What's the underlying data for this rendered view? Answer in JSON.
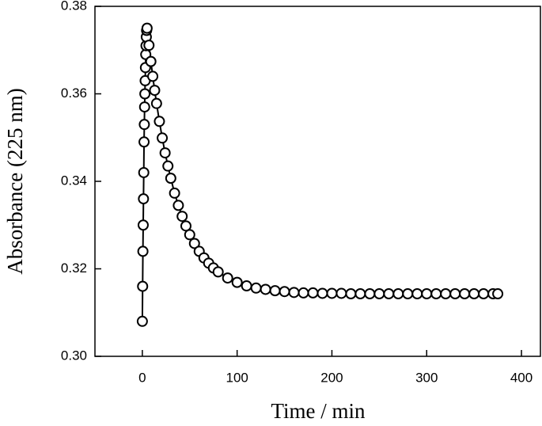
{
  "chart_data": {
    "type": "scatter",
    "xlabel": "Time / min",
    "ylabel": "Absorbance (225 nm)",
    "x": [
      0,
      0.3,
      0.6,
      0.9,
      1.2,
      1.5,
      1.8,
      2.1,
      2.4,
      2.7,
      3,
      3.3,
      3.6,
      3.9,
      4.2,
      4.5,
      5,
      7,
      9,
      11,
      13,
      15,
      18,
      21,
      24,
      27,
      30,
      34,
      38,
      42,
      46,
      50,
      55,
      60,
      65,
      70,
      75,
      80,
      90,
      100,
      110,
      120,
      130,
      140,
      150,
      160,
      170,
      180,
      190,
      200,
      210,
      220,
      230,
      240,
      250,
      260,
      270,
      280,
      290,
      300,
      310,
      320,
      330,
      340,
      350,
      360,
      370,
      375
    ],
    "values": [
      0.308,
      0.316,
      0.324,
      0.33,
      0.336,
      0.342,
      0.349,
      0.353,
      0.357,
      0.36,
      0.363,
      0.366,
      0.369,
      0.371,
      0.373,
      0.3745,
      0.375,
      0.3711,
      0.3674,
      0.364,
      0.3608,
      0.3578,
      0.3537,
      0.3499,
      0.3465,
      0.3435,
      0.3407,
      0.3373,
      0.3345,
      0.332,
      0.3298,
      0.3278,
      0.3258,
      0.324,
      0.3225,
      0.3213,
      0.3202,
      0.3193,
      0.3179,
      0.3169,
      0.3161,
      0.3156,
      0.3153,
      0.315,
      0.3148,
      0.3146,
      0.3145,
      0.3145,
      0.3144,
      0.3144,
      0.3144,
      0.3143,
      0.3143,
      0.3143,
      0.3143,
      0.3143,
      0.3143,
      0.3143,
      0.3143,
      0.3143,
      0.3143,
      0.3143,
      0.3143,
      0.3143,
      0.3143,
      0.3143,
      0.3143,
      0.3143
    ],
    "color": "#000000",
    "marker_fill": "#ffffff",
    "line": true,
    "xlim": [
      -50,
      420
    ],
    "ylim": [
      0.3,
      0.38
    ],
    "xticks": [
      0,
      100,
      200,
      300,
      400
    ],
    "yticks": [
      {
        "value": 0.3,
        "label": "0.30"
      },
      {
        "value": 0.32,
        "label": "0.32"
      },
      {
        "value": 0.34,
        "label": "0.34"
      },
      {
        "value": 0.36,
        "label": "0.36"
      },
      {
        "value": 0.38,
        "label": "0.38"
      }
    ]
  }
}
